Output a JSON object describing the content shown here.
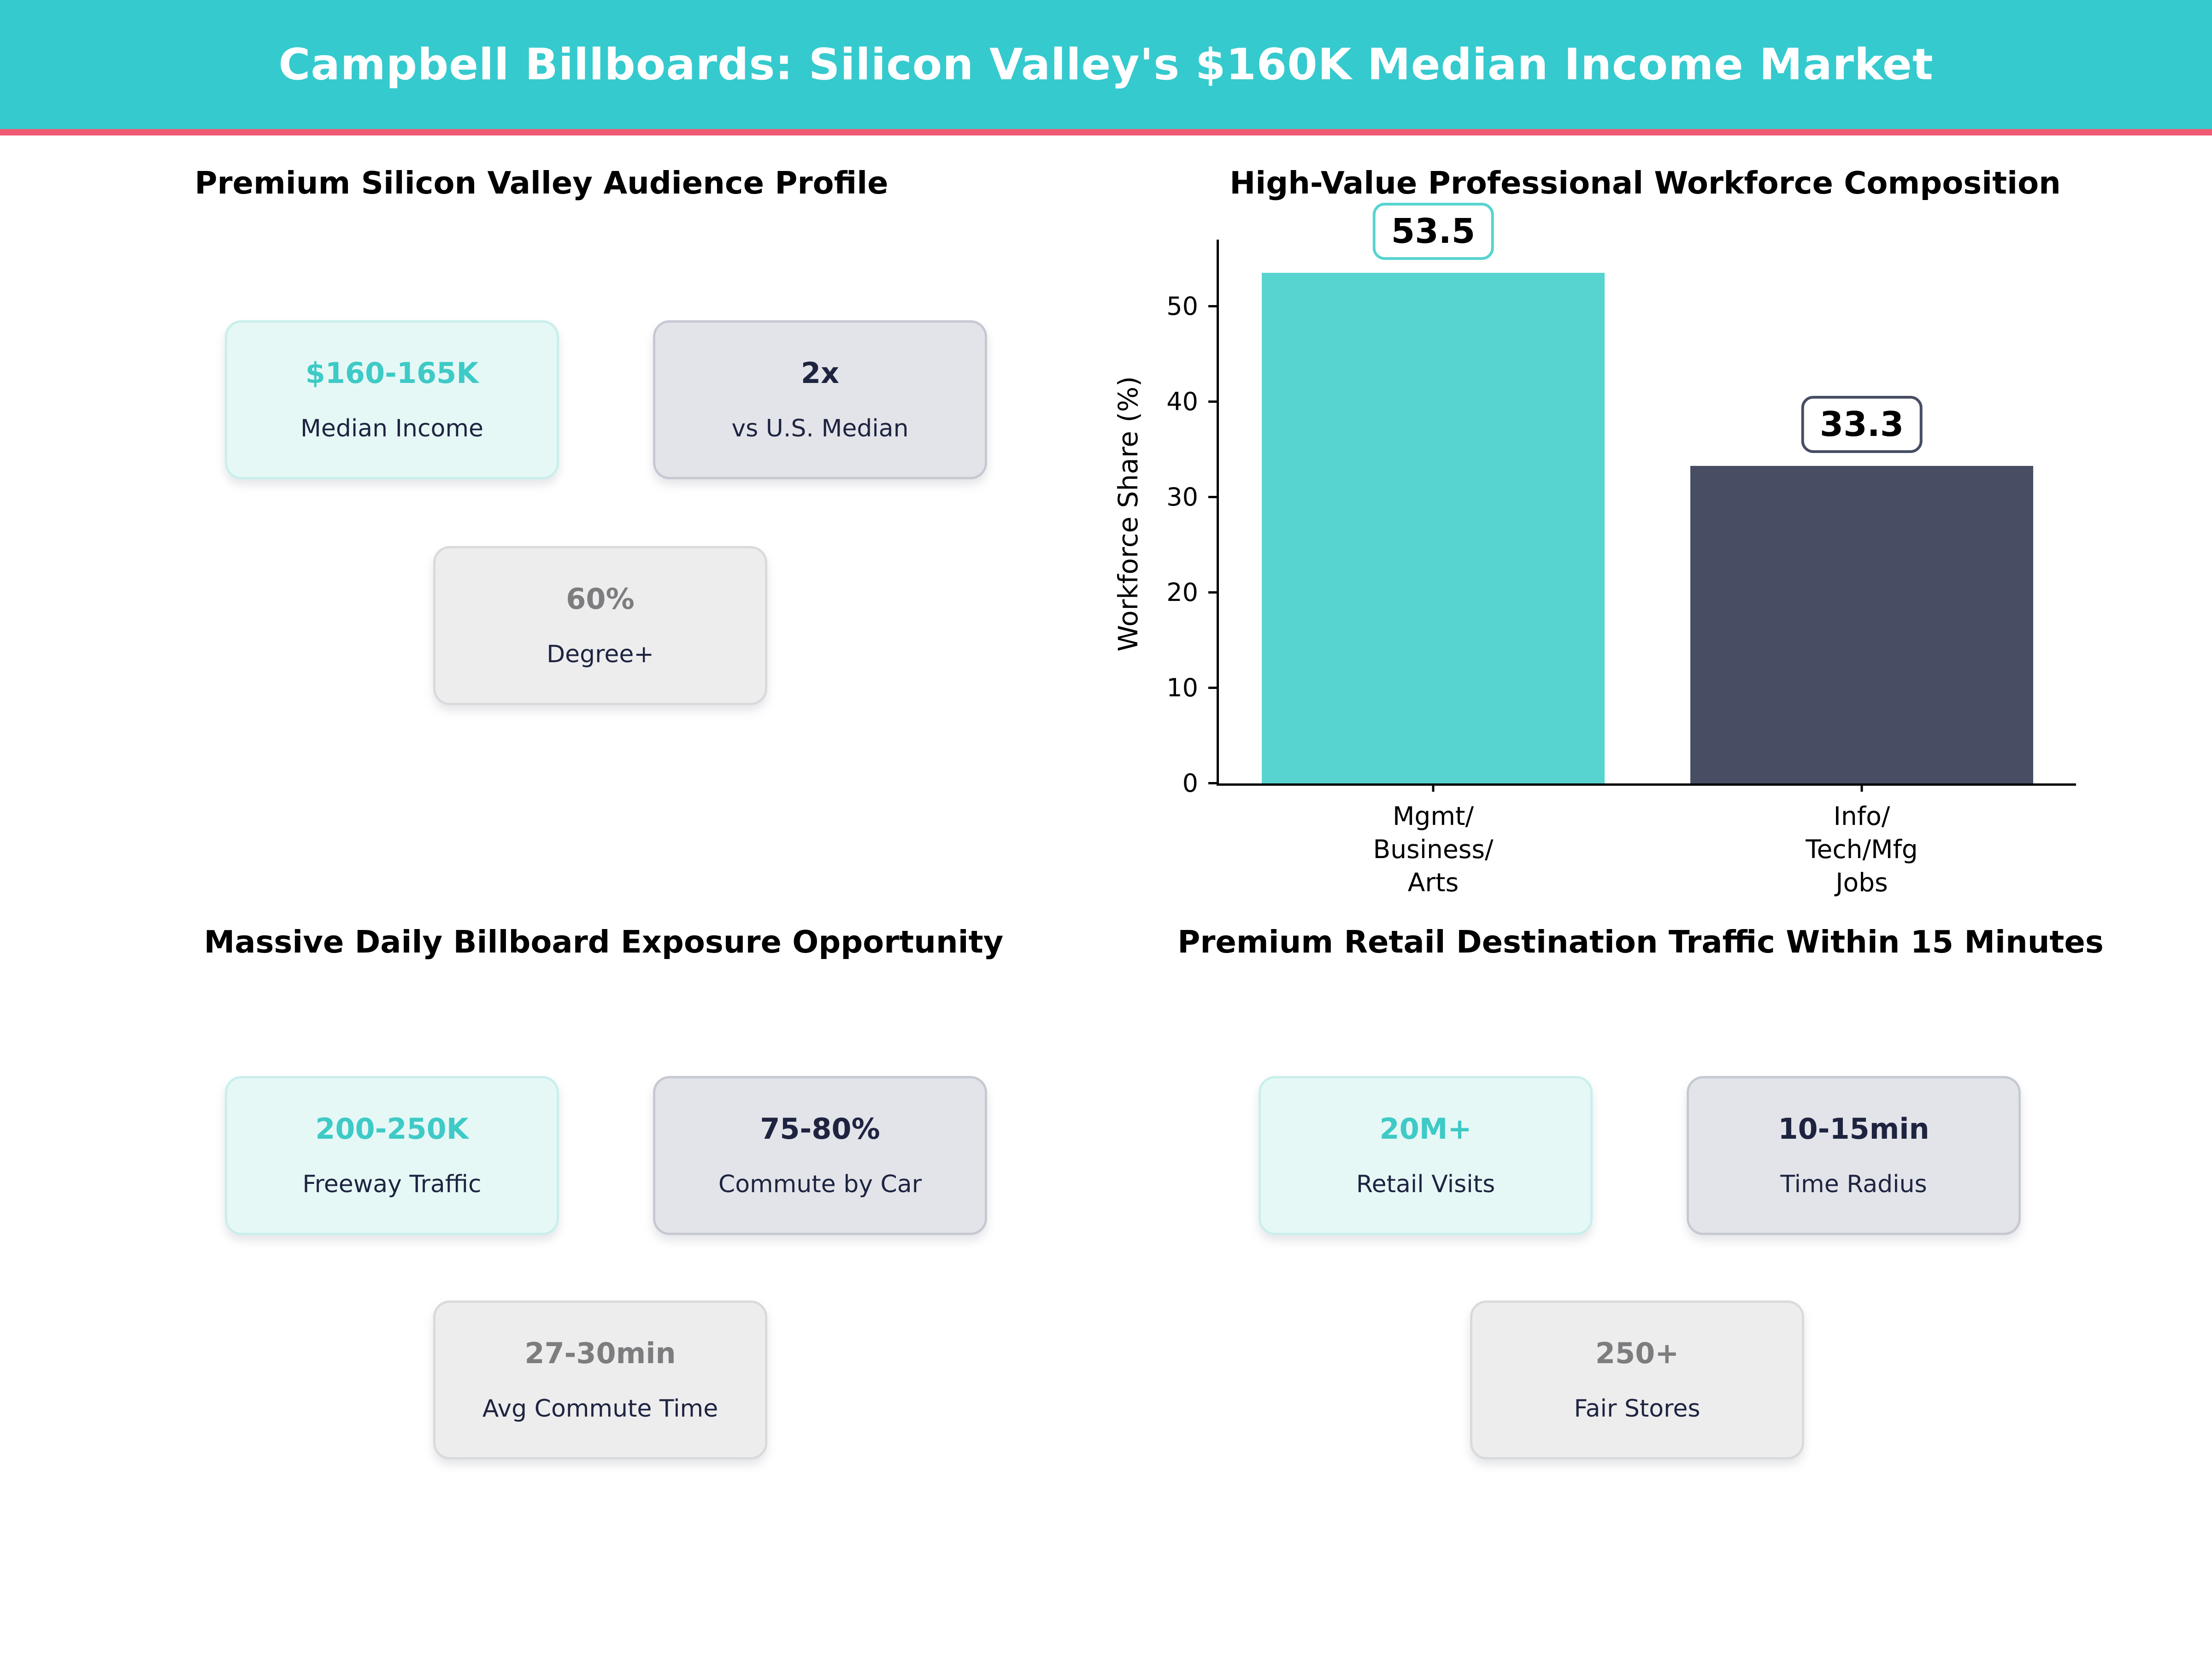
{
  "header": {
    "title": "Campbell Billboards: Silicon Valley's $160K Median Income Market",
    "banner_color": "#35cace",
    "underline_color": "#ef5b72"
  },
  "sections": {
    "audience": {
      "title": "Premium Silicon Valley Audience Profile",
      "cards": [
        {
          "value": "$160-165K",
          "label": "Median Income",
          "style": "teal"
        },
        {
          "value": "2x",
          "label": "vs U.S. Median",
          "style": "dark"
        },
        {
          "value": "60%",
          "label": "Degree+",
          "style": "gray"
        }
      ]
    },
    "workforce": {
      "title": "High-Value Professional Workforce Composition"
    },
    "exposure": {
      "title": "Massive Daily Billboard Exposure Opportunity",
      "cards": [
        {
          "value": "200-250K",
          "label": "Freeway Traffic",
          "style": "teal"
        },
        {
          "value": "75-80%",
          "label": "Commute by Car",
          "style": "dark"
        },
        {
          "value": "27-30min",
          "label": "Avg Commute Time",
          "style": "gray"
        }
      ]
    },
    "retail": {
      "title": "Premium Retail Destination Traffic Within 15 Minutes",
      "cards": [
        {
          "value": "20M+",
          "label": "Retail Visits",
          "style": "teal"
        },
        {
          "value": "10-15min",
          "label": "Time Radius",
          "style": "dark"
        },
        {
          "value": "250+",
          "label": "Fair Stores",
          "style": "gray"
        }
      ]
    }
  },
  "chart_data": {
    "type": "bar",
    "title": "High-Value Professional Workforce Composition",
    "categories": [
      "Mgmt/\nBusiness/\nArts",
      "Info/\nTech/Mfg\nJobs"
    ],
    "values": [
      53.5,
      33.3
    ],
    "value_labels": [
      "53.5",
      "33.3"
    ],
    "bar_colors": [
      "#58d4d0",
      "#474e63"
    ],
    "label_box_border_colors": [
      "#58d4d0",
      "#474e63"
    ],
    "xlabel": "",
    "ylabel": "Workforce Share (%)",
    "ylim": [
      0,
      57
    ],
    "yticks": [
      0,
      10,
      20,
      30,
      40,
      50
    ],
    "grid": false,
    "legend": null
  },
  "colors": {
    "accent_teal": "#3ecac6",
    "accent_navy": "#1e2440",
    "accent_gray": "#7d7d80",
    "card_teal_bg": "#e6f8f6",
    "card_dark_bg": "#e3e4e9",
    "card_gray_bg": "#ededee"
  }
}
